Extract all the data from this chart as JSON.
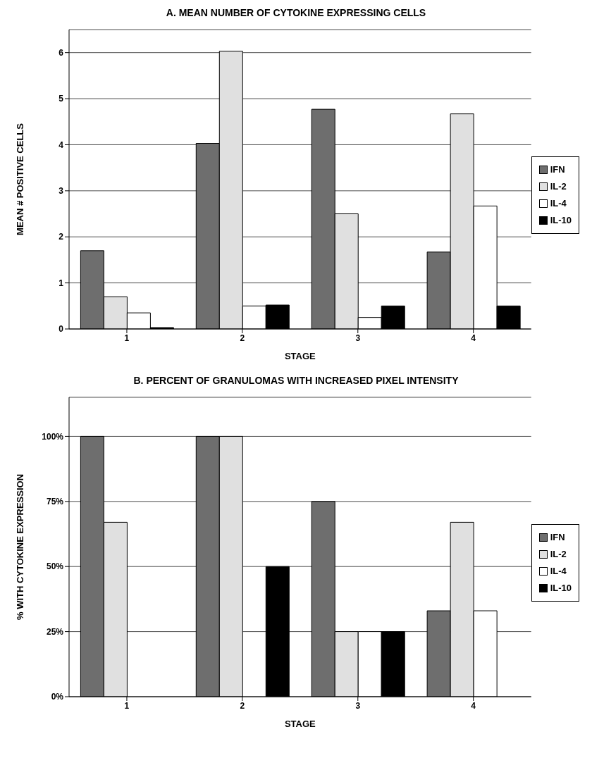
{
  "chart_data": [
    {
      "type": "bar",
      "title": "A. MEAN NUMBER OF CYTOKINE EXPRESSING CELLS",
      "xlabel": "STAGE",
      "ylabel": "MEAN # POSITIVE CELLS",
      "categories": [
        "1",
        "2",
        "3",
        "4"
      ],
      "series": [
        {
          "name": "IFN",
          "color": "#6e6e6e",
          "values": [
            1.7,
            4.03,
            4.77,
            1.67
          ]
        },
        {
          "name": "IL-2",
          "color": "#e0e0e0",
          "values": [
            0.7,
            6.03,
            2.5,
            4.67
          ]
        },
        {
          "name": "IL-4",
          "color": "#ffffff",
          "values": [
            0.35,
            0.5,
            0.25,
            2.67
          ]
        },
        {
          "name": "IL-10",
          "color": "#000000",
          "values": [
            0.03,
            0.52,
            0.5,
            0.5
          ]
        }
      ],
      "ylim": [
        0,
        6.5
      ],
      "yticks": [
        0,
        1,
        2,
        3,
        4,
        5,
        6
      ],
      "grid": "y",
      "legend": "right"
    },
    {
      "type": "bar",
      "title": "B. PERCENT OF GRANULOMAS WITH INCREASED PIXEL INTENSITY",
      "xlabel": "STAGE",
      "ylabel": "% WITH CYTOKINE EXPRESSION",
      "categories": [
        "1",
        "2",
        "3",
        "4"
      ],
      "series": [
        {
          "name": "IFN",
          "color": "#6e6e6e",
          "values": [
            100,
            100,
            75,
            33
          ]
        },
        {
          "name": "IL-2",
          "color": "#e0e0e0",
          "values": [
            67,
            100,
            25,
            67
          ]
        },
        {
          "name": "IL-4",
          "color": "#ffffff",
          "values": [
            0,
            0,
            25,
            33
          ]
        },
        {
          "name": "IL-10",
          "color": "#000000",
          "values": [
            0,
            50,
            25,
            0
          ]
        }
      ],
      "ylim": [
        0,
        115
      ],
      "yticks": [
        {
          "value": 0,
          "label": "0%"
        },
        {
          "value": 25,
          "label": "25%"
        },
        {
          "value": 50,
          "label": "50%"
        },
        {
          "value": 75,
          "label": "75%"
        },
        {
          "value": 100,
          "label": "100%"
        }
      ],
      "grid": "y",
      "legend": "right"
    }
  ]
}
